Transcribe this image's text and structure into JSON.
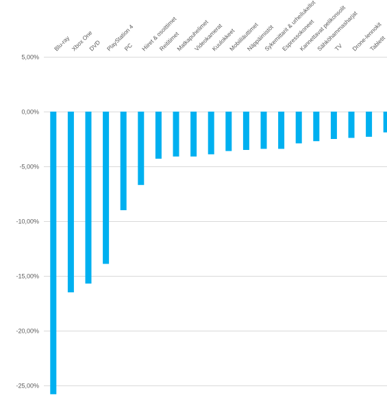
{
  "chart_data": {
    "type": "bar",
    "title": "",
    "xlabel": "",
    "ylabel": "",
    "ylim": [
      -0.26,
      0.05
    ],
    "y_ticks": [
      "5,00%",
      "0,00%",
      "-5,00%",
      "-10,00%",
      "-15,00%",
      "-20,00%",
      "-25,00%"
    ],
    "y_tick_values": [
      0.05,
      0.0,
      -0.05,
      -0.1,
      -0.15,
      -0.2,
      -0.25
    ],
    "grid": true,
    "legend": "none",
    "bar_color": "#00B0F0",
    "grid_color": "#D9D9D9",
    "categories": [
      "Blu-ray",
      "Xbox One",
      "DVD",
      "PlayStation 4",
      "PC",
      "Hiiret & osoittimet",
      "Reititimet",
      "Matkapuhelimet",
      "Videokamerat",
      "Kuulokkeet",
      "Mobiiliäuttimet",
      "Näppäimistöt",
      "Sykemittarit & urheilukellot",
      "Espressokoneet",
      "Kannettavat pelikonsolit",
      "Sähköhammasharjat",
      "TV",
      "Drone-lennokit",
      "Tabletit",
      ""
    ],
    "values": [
      -0.258,
      -0.165,
      -0.157,
      -0.139,
      -0.09,
      -0.067,
      -0.043,
      -0.041,
      -0.041,
      -0.039,
      -0.036,
      -0.035,
      -0.034,
      -0.034,
      -0.029,
      -0.027,
      -0.025,
      -0.024,
      -0.023,
      -0.019
    ]
  }
}
